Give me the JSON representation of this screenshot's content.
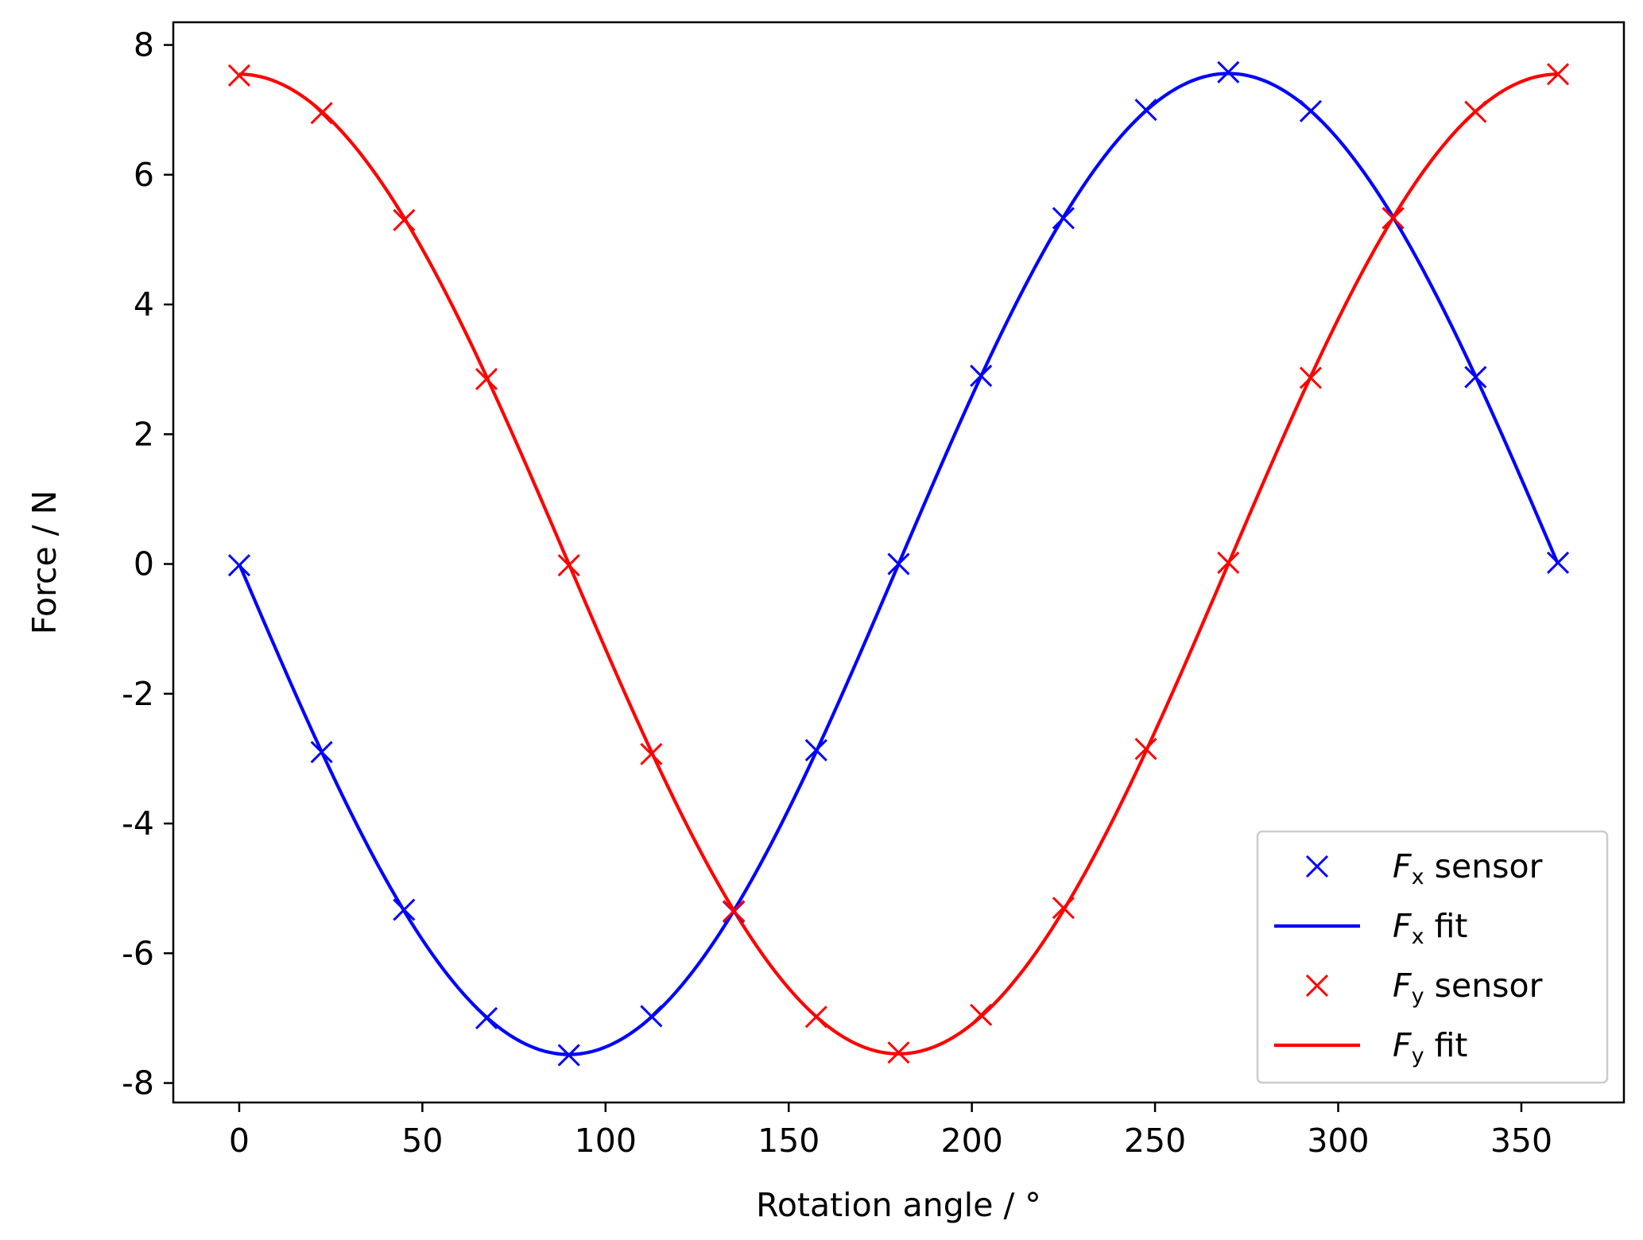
{
  "chart_data": {
    "type": "line",
    "title": "",
    "xlabel": "Rotation angle / °",
    "ylabel": "Force / N",
    "xlim": [
      -18,
      378
    ],
    "ylim": [
      -8.3,
      8.35
    ],
    "xticks": [
      0,
      50,
      100,
      150,
      200,
      250,
      300,
      350
    ],
    "yticks": [
      -8,
      -6,
      -4,
      -2,
      0,
      2,
      4,
      6,
      8
    ],
    "ytick_labels": [
      "-8",
      "-6",
      "-4",
      "-2",
      "0",
      "2",
      "4",
      "6",
      "8"
    ],
    "grid": false,
    "legend_position": "lower-right",
    "x": [
      0,
      22.5,
      45,
      67.5,
      90,
      112.5,
      135,
      157.5,
      180,
      202.5,
      225,
      247.5,
      270,
      292.5,
      315,
      337.5,
      360
    ],
    "series": [
      {
        "name_italic": "F",
        "name_sub": "x",
        "name_rest": "sensor",
        "kind": "marker",
        "marker": "x",
        "color": "#0000ff",
        "values": [
          -0.02,
          -2.9,
          -5.33,
          -7.0,
          -7.57,
          -6.97,
          -5.36,
          -2.87,
          0.0,
          2.9,
          5.33,
          7.0,
          7.58,
          6.98,
          5.33,
          2.88,
          0.02
        ]
      },
      {
        "name_italic": "F",
        "name_sub": "x",
        "name_rest": "fit",
        "kind": "line",
        "color": "#0000ff",
        "amplitude": 7.56,
        "phase_deg": 0,
        "function": "-A*sin(theta)"
      },
      {
        "name_italic": "F",
        "name_sub": "y",
        "name_rest": "sensor",
        "kind": "marker",
        "marker": "x",
        "color": "#ff0000",
        "values": [
          7.53,
          6.95,
          5.3,
          2.85,
          -0.02,
          -2.93,
          -5.35,
          -6.98,
          -7.53,
          -6.95,
          -5.3,
          -2.85,
          0.02,
          2.87,
          5.33,
          6.97,
          7.55
        ]
      },
      {
        "name_italic": "F",
        "name_sub": "y",
        "name_rest": "fit",
        "kind": "line",
        "color": "#ff0000",
        "amplitude": 7.55,
        "phase_deg": 0,
        "function": "A*cos(theta)"
      }
    ]
  }
}
